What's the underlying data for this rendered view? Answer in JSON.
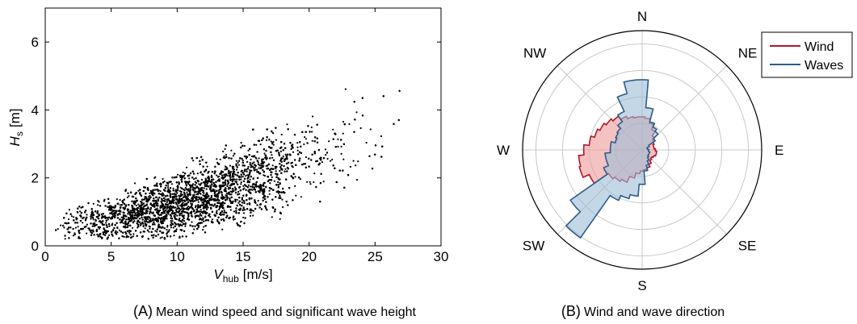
{
  "chart_data": [
    {
      "type": "scatter",
      "panel": "A",
      "xlabel": {
        "symbol": "V",
        "subscript": "hub",
        "unit": "[m/s]"
      },
      "ylabel": {
        "symbol": "H",
        "subscript": "s",
        "unit": "[m]"
      },
      "xlim": [
        0,
        30
      ],
      "ylim": [
        0,
        7
      ],
      "xticks": [
        0,
        5,
        10,
        15,
        20,
        25,
        30
      ],
      "yticks": [
        0,
        2,
        4,
        6
      ],
      "grid": false,
      "marker_color": "#000000",
      "point_count_drawn": 9000,
      "trend": {
        "description_values": "Hs mean vs Vhub (approx.)",
        "x": [
          1,
          5,
          10,
          15,
          20,
          25,
          28
        ],
        "y_mean": [
          0.6,
          0.8,
          1.2,
          1.8,
          2.6,
          3.4,
          4.0
        ],
        "y_spread": [
          0.25,
          0.35,
          0.5,
          0.6,
          0.65,
          0.7,
          0.7
        ]
      },
      "caption": {
        "tag": "(A)",
        "text": "Mean wind speed and significant wave height"
      }
    },
    {
      "type": "polar-area",
      "panel": "B",
      "directions": [
        "N",
        "NE",
        "E",
        "SE",
        "S",
        "SW",
        "W",
        "NW"
      ],
      "rings": [
        1,
        2,
        3,
        4
      ],
      "grid": true,
      "sector_width_deg": 10,
      "series": [
        {
          "name": "Wind",
          "color": "#b2182b",
          "fill": "#ef9a9a",
          "values": [
            1.25,
            1.2,
            1.05,
            0.85,
            0.65,
            0.55,
            0.5,
            0.45,
            0.45,
            0.5,
            0.55,
            0.55,
            0.5,
            0.45,
            0.5,
            0.6,
            0.7,
            0.75,
            0.8,
            0.9,
            1.1,
            1.35,
            1.45,
            1.55,
            2.2,
            2.45,
            2.4,
            2.2,
            2.0,
            1.85,
            1.75,
            1.65,
            1.55,
            1.4,
            1.3,
            1.25
          ]
        },
        {
          "name": "Waves",
          "color": "#2c5d8a",
          "fill": "#9dbcd7",
          "values": [
            2.65,
            1.6,
            1.1,
            0.95,
            0.85,
            0.6,
            0.3,
            0.2,
            0.2,
            0.25,
            0.25,
            0.3,
            0.3,
            0.3,
            0.35,
            0.45,
            0.6,
            0.8,
            1.3,
            1.75,
            1.9,
            2.1,
            4.05,
            3.3,
            1.6,
            1.4,
            1.4,
            1.2,
            1.2,
            1.05,
            1.1,
            1.15,
            1.3,
            1.6,
            2.2,
            2.65
          ]
        }
      ],
      "legend": {
        "placement": "top-right",
        "items": [
          "Wind",
          "Waves"
        ]
      },
      "caption": {
        "tag": "(B)",
        "text": "Wind and wave direction"
      }
    }
  ]
}
